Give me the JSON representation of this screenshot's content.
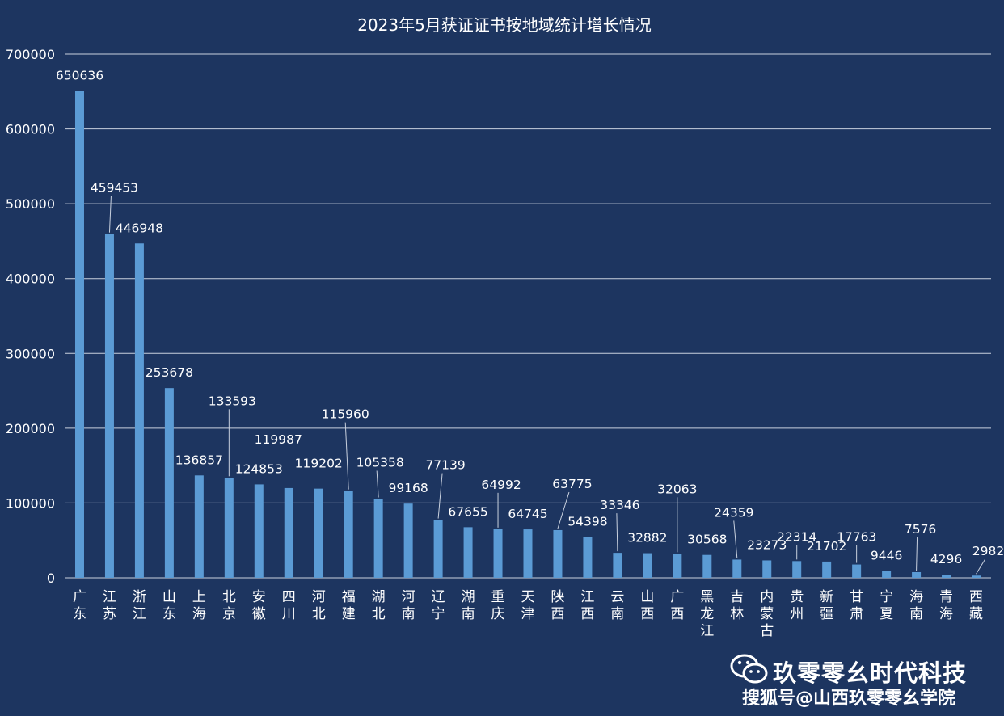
{
  "chart_data": {
    "type": "bar",
    "title": "2023年5月获证证书按地域统计增长情况",
    "xlabel": "",
    "ylabel": "",
    "ylim": [
      0,
      700000
    ],
    "yticks": [
      0,
      100000,
      200000,
      300000,
      400000,
      500000,
      600000,
      700000
    ],
    "grid": true,
    "categories": [
      "广东",
      "江苏",
      "浙江",
      "山东",
      "上海",
      "北京",
      "安徽",
      "四川",
      "河北",
      "福建",
      "湖北",
      "河南",
      "辽宁",
      "湖南",
      "重庆",
      "天津",
      "陕西",
      "江西",
      "云南",
      "山西",
      "广西",
      "黑龙江",
      "吉林",
      "内蒙古",
      "贵州",
      "新疆",
      "甘肃",
      "宁夏",
      "海南",
      "青海",
      "西藏"
    ],
    "values": [
      650636,
      459453,
      446948,
      253678,
      136857,
      133593,
      124853,
      119987,
      119202,
      115960,
      105358,
      99168,
      77139,
      67655,
      64992,
      64745,
      63775,
      54398,
      33346,
      32882,
      32063,
      30568,
      24359,
      23273,
      22314,
      21702,
      17763,
      9446,
      7576,
      4296,
      2982
    ],
    "colors": {
      "bar": "#5b9bd5",
      "background": "#1d3560",
      "grid": "#c9d1de",
      "text": "#ffffff"
    }
  },
  "watermark": {
    "icon": "wechat-icon",
    "name": "玖零零幺时代科技",
    "sub": "搜狐号@山西玖零零幺学院"
  }
}
